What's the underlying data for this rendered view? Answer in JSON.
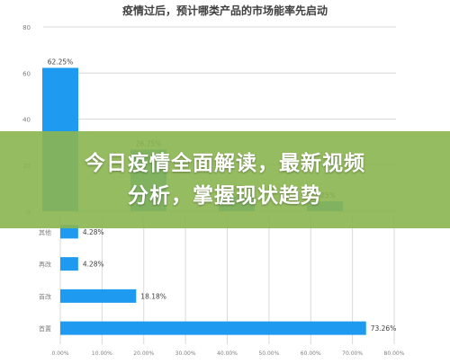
{
  "banner": {
    "line1": "今日疫情全面解读，最新视频",
    "line2": "分析，掌握现状趋势"
  },
  "colors": {
    "bar": "#1e9bf0",
    "axis_text": "#7f7f7f",
    "grid": "#d9d9d9",
    "banner": "#8bb550"
  },
  "chart_data": [
    {
      "type": "bar",
      "title": "疫情过后，预计哪类产品的市场能率先启动",
      "categories": [
        "",
        "",
        "",
        ""
      ],
      "values": [
        62.25,
        26.75,
        6.75,
        4.25
      ],
      "data_labels": [
        "62.25%",
        "26.75%",
        "6.75%",
        "4.25%"
      ],
      "yticks": [
        "0",
        "20",
        "40",
        "60",
        "80"
      ],
      "ylim": [
        0,
        80
      ],
      "grid": true,
      "legend": "none"
    },
    {
      "type": "bar",
      "orientation": "horizontal",
      "title": "",
      "categories": [
        "其他",
        "再改",
        "首改",
        "首置"
      ],
      "values": [
        4.28,
        4.28,
        18.18,
        73.26
      ],
      "data_labels": [
        "4.28%",
        "4.28%",
        "18.18%",
        "73.26%"
      ],
      "xticks": [
        "0.00%",
        "10.00%",
        "20.00%",
        "30.00%",
        "40.00%",
        "50.00%",
        "60.00%",
        "70.00%",
        "80.00%"
      ],
      "xlim": [
        0,
        80
      ],
      "grid": true,
      "legend": "none"
    }
  ]
}
